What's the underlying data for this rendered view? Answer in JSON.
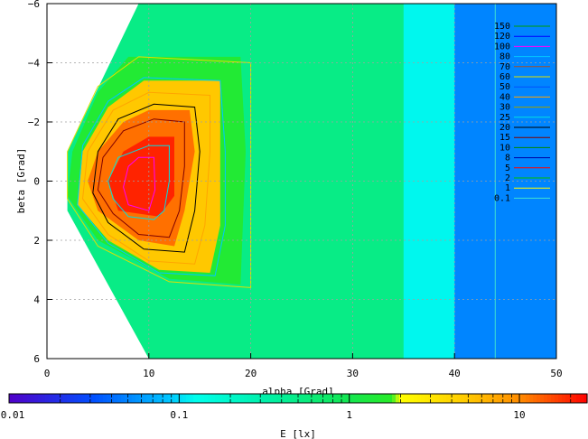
{
  "chart_data": {
    "type": "heatmap",
    "xlabel": "alpha [Grad]",
    "ylabel": "beta [Grad]",
    "colorbar_label": "E [lx]",
    "xlim": [
      0,
      50
    ],
    "ylim": [
      6,
      -6
    ],
    "x_ticks": [
      0,
      10,
      20,
      30,
      40,
      50
    ],
    "y_ticks": [
      -6,
      -4,
      -2,
      0,
      2,
      4,
      6
    ],
    "colorbar_scale": "log",
    "colorbar_range": [
      0.01,
      25
    ],
    "colorbar_ticks": [
      {
        "value": 0.01,
        "label": "0.01"
      },
      {
        "value": 0.1,
        "label": "0.1"
      },
      {
        "value": 1,
        "label": "1"
      },
      {
        "value": 10,
        "label": "10"
      }
    ],
    "grid": true,
    "legend_placement": "right",
    "contour_levels": [
      {
        "label": "150",
        "color": "#00a000"
      },
      {
        "label": "120",
        "color": "#0000ff"
      },
      {
        "label": "100",
        "color": "#ff00ff"
      },
      {
        "label": "80",
        "color": "#00c8ff"
      },
      {
        "label": "70",
        "color": "#a0522d"
      },
      {
        "label": "60",
        "color": "#e0e000"
      },
      {
        "label": "50",
        "color": "#0050ff"
      },
      {
        "label": "40",
        "color": "#ffa500"
      },
      {
        "label": "30",
        "color": "#a0a000"
      },
      {
        "label": "25",
        "color": "#00e0e0"
      },
      {
        "label": "20",
        "color": "#000000"
      },
      {
        "label": "15",
        "color": "#7f0000"
      },
      {
        "label": "10",
        "color": "#008800"
      },
      {
        "label": "8",
        "color": "#0000a0"
      },
      {
        "label": "5",
        "color": "#ff0000"
      },
      {
        "label": "2",
        "color": "#00c000"
      },
      {
        "label": "1",
        "color": "#ffff00"
      },
      {
        "label": "0.1",
        "color": "#40e0d0"
      }
    ],
    "regions": [
      {
        "level": 0.05,
        "points": [
          [
            14,
            -6
          ],
          [
            50,
            -6
          ],
          [
            50,
            6
          ],
          [
            14,
            6
          ],
          [
            10,
            2
          ],
          [
            10,
            -2
          ]
        ]
      },
      {
        "level": 0.12,
        "points": [
          [
            9,
            -6
          ],
          [
            40,
            -6
          ],
          [
            40,
            6
          ],
          [
            10,
            6
          ],
          [
            4,
            1
          ],
          [
            4,
            -1
          ]
        ]
      },
      {
        "level": 0.5,
        "points": [
          [
            9,
            -6
          ],
          [
            35,
            -6
          ],
          [
            35,
            6
          ],
          [
            10,
            6
          ],
          [
            2,
            1
          ],
          [
            2,
            -1
          ]
        ]
      },
      {
        "level": 1.5,
        "points": [
          [
            8,
            -4.2
          ],
          [
            19,
            -4.2
          ],
          [
            19.5,
            -1
          ],
          [
            19,
            3.5
          ],
          [
            12,
            3.3
          ],
          [
            5,
            2
          ],
          [
            2,
            0.5
          ],
          [
            2.5,
            -1
          ],
          [
            5,
            -3
          ]
        ]
      },
      {
        "level": 5,
        "points": [
          [
            9.5,
            -3.4
          ],
          [
            17,
            -3.4
          ],
          [
            17,
            -1
          ],
          [
            17,
            1.5
          ],
          [
            16,
            3.1
          ],
          [
            11,
            3
          ],
          [
            6,
            2
          ],
          [
            3,
            0.8
          ],
          [
            3.5,
            -1
          ],
          [
            6,
            -2.5
          ]
        ]
      },
      {
        "level": 12,
        "points": [
          [
            10,
            -2.4
          ],
          [
            14,
            -2.4
          ],
          [
            14.5,
            -1
          ],
          [
            13.5,
            1
          ],
          [
            12.5,
            2.2
          ],
          [
            9,
            2
          ],
          [
            5,
            1
          ],
          [
            4,
            0
          ],
          [
            5,
            -1
          ],
          [
            7.5,
            -2
          ]
        ]
      },
      {
        "level": 20,
        "points": [
          [
            10,
            -1.5
          ],
          [
            12.5,
            -1.5
          ],
          [
            12.5,
            0.5
          ],
          [
            11,
            1.2
          ],
          [
            7,
            1
          ],
          [
            6,
            0
          ],
          [
            7.5,
            -1
          ]
        ]
      }
    ],
    "contours": [
      {
        "color": "#e0e000",
        "points": [
          [
            9,
            -4.2
          ],
          [
            20,
            -4
          ],
          [
            20,
            -1
          ],
          [
            20,
            2
          ],
          [
            20,
            3.6
          ],
          [
            12,
            3.4
          ],
          [
            5,
            2.2
          ],
          [
            2,
            0.6
          ],
          [
            2,
            -1
          ],
          [
            5,
            -3.2
          ]
        ]
      },
      {
        "color": "#00c8ff",
        "points": [
          [
            9.5,
            -3.5
          ],
          [
            17,
            -3.4
          ],
          [
            17.5,
            -1
          ],
          [
            17.5,
            1.5
          ],
          [
            16.5,
            3.2
          ],
          [
            11,
            3.1
          ],
          [
            6,
            2.1
          ],
          [
            3,
            0.8
          ],
          [
            3.5,
            -1.2
          ],
          [
            6,
            -2.7
          ]
        ]
      },
      {
        "color": "#ffa500",
        "points": [
          [
            10,
            -3
          ],
          [
            16,
            -2.9
          ],
          [
            16,
            -1
          ],
          [
            15.5,
            1.5
          ],
          [
            14.5,
            2.8
          ],
          [
            10,
            2.7
          ],
          [
            6,
            1.8
          ],
          [
            3.5,
            0.6
          ],
          [
            4,
            -1
          ],
          [
            6.5,
            -2.4
          ]
        ]
      },
      {
        "color": "#000000",
        "points": [
          [
            10.5,
            -2.6
          ],
          [
            14.5,
            -2.5
          ],
          [
            15,
            -1
          ],
          [
            14.5,
            1
          ],
          [
            13.5,
            2.4
          ],
          [
            9.5,
            2.3
          ],
          [
            6,
            1.4
          ],
          [
            4.5,
            0.4
          ],
          [
            5,
            -1
          ],
          [
            7,
            -2.1
          ]
        ]
      },
      {
        "color": "#7f0000",
        "points": [
          [
            10.5,
            -2.1
          ],
          [
            13.5,
            -2
          ],
          [
            13.5,
            -0.5
          ],
          [
            13,
            1
          ],
          [
            12,
            1.9
          ],
          [
            9,
            1.8
          ],
          [
            6.5,
            1.1
          ],
          [
            5,
            0.3
          ],
          [
            5.5,
            -0.8
          ],
          [
            7.5,
            -1.7
          ]
        ]
      },
      {
        "color": "#00e0e0",
        "points": [
          [
            10,
            -1.2
          ],
          [
            12,
            -1.2
          ],
          [
            12,
            0
          ],
          [
            11.5,
            1
          ],
          [
            10.5,
            1.3
          ],
          [
            8,
            1.2
          ],
          [
            6.5,
            0.6
          ],
          [
            6,
            0
          ],
          [
            7,
            -0.8
          ]
        ]
      },
      {
        "color": "#ff00ff",
        "points": [
          [
            9,
            -0.8
          ],
          [
            10.5,
            -0.8
          ],
          [
            10.6,
            0.3
          ],
          [
            10,
            1
          ],
          [
            8,
            0.8
          ],
          [
            7.5,
            0.2
          ],
          [
            8,
            -0.5
          ]
        ]
      },
      {
        "color": "#40e0d0",
        "points": [
          [
            44,
            -6
          ],
          [
            44,
            6
          ]
        ]
      }
    ]
  }
}
